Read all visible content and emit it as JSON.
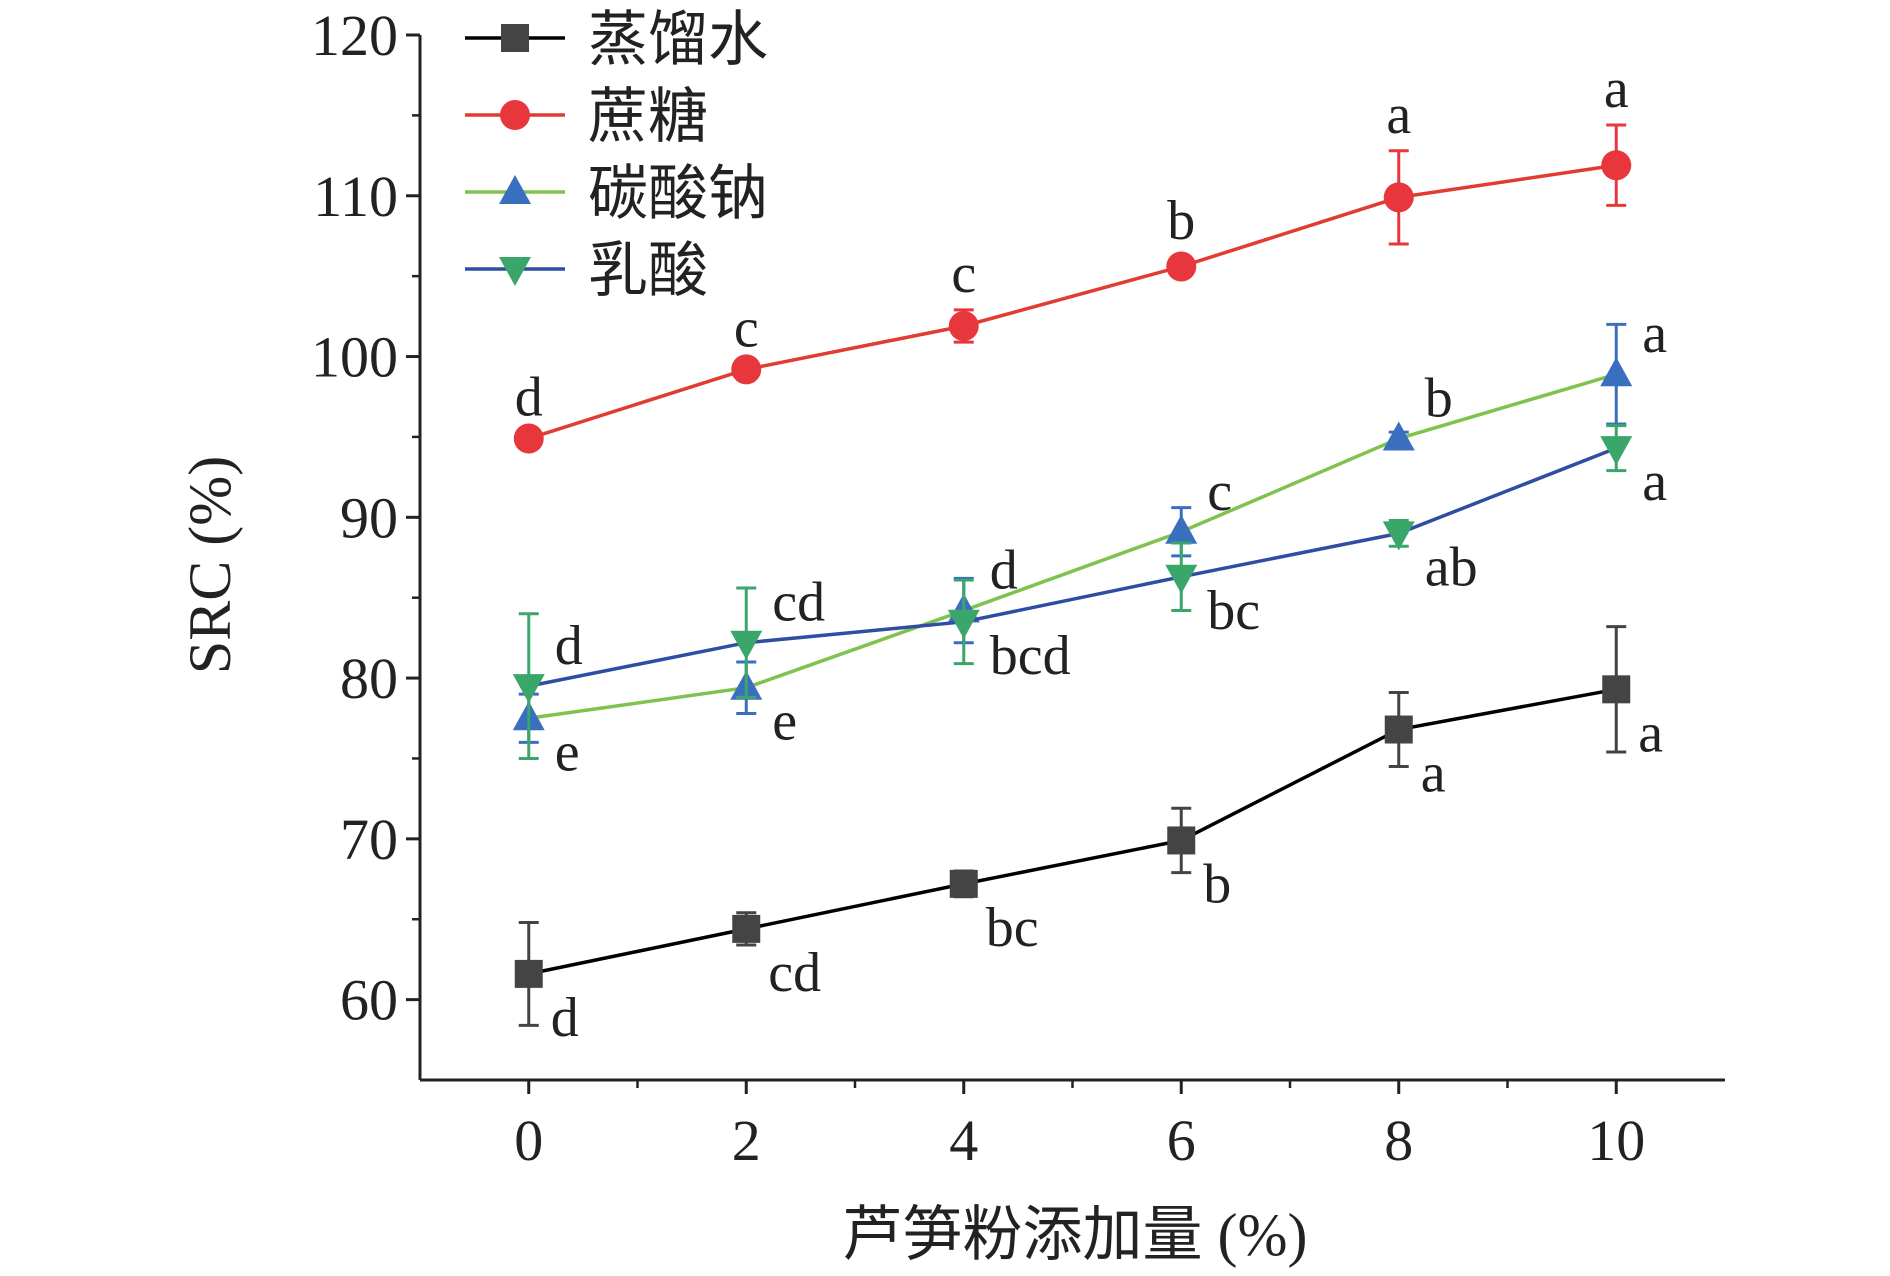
{
  "chart_data": {
    "type": "line",
    "title": "",
    "xlabel": "芦笋粉添加量 (%)",
    "ylabel": "SRC (%)",
    "xlim": [
      -1,
      11
    ],
    "ylim": [
      55,
      120
    ],
    "x_ticks": [
      0,
      2,
      4,
      6,
      8,
      10
    ],
    "y_ticks": [
      60,
      70,
      80,
      90,
      100,
      110,
      120
    ],
    "x_tick_labels": [
      "0",
      "2",
      "4",
      "6",
      "8",
      "10"
    ],
    "y_tick_labels": [
      "60",
      "70",
      "80",
      "90",
      "100",
      "110",
      "120"
    ],
    "grid": false,
    "legend_position": "top-left",
    "x": [
      0,
      2,
      4,
      6,
      8,
      10
    ],
    "series": [
      {
        "name": "蒸馏水",
        "marker": "square",
        "line_color": "#000000",
        "marker_color": "#444444",
        "values": [
          61.6,
          64.4,
          67.2,
          69.9,
          76.8,
          79.3
        ],
        "errors": [
          3.2,
          1.0,
          0.8,
          2.0,
          2.3,
          3.9
        ],
        "labels": [
          "d",
          "cd",
          "bc",
          "b",
          "a",
          "a"
        ],
        "label_positions": [
          "below-right",
          "below-right",
          "below-right",
          "below-right",
          "below-right",
          "below-right"
        ]
      },
      {
        "name": "蔗糖",
        "marker": "circle",
        "line_color": "#e03c31",
        "marker_color": "#e8373c",
        "values": [
          94.9,
          99.2,
          101.9,
          105.6,
          109.9,
          111.9
        ],
        "errors": [
          0.3,
          0.3,
          1.0,
          0.6,
          2.9,
          2.5
        ],
        "labels": [
          "d",
          "c",
          "c",
          "b",
          "a",
          "a"
        ],
        "label_positions": [
          "above",
          "above",
          "above",
          "above",
          "above",
          "above"
        ]
      },
      {
        "name": "碳酸钠",
        "marker": "triangle-up",
        "line_color": "#80c24e",
        "marker_color": "#3a6fc0",
        "values": [
          77.5,
          79.4,
          84.2,
          89.1,
          94.9,
          98.9
        ],
        "errors": [
          1.5,
          1.6,
          2.0,
          1.5,
          0.4,
          3.1
        ],
        "labels": [
          "e",
          "e",
          "d",
          "c",
          "b",
          "a"
        ],
        "label_positions": [
          "right-below",
          "right-below",
          "right-above",
          "right-above",
          "right-above",
          "right-above"
        ]
      },
      {
        "name": "乳酸",
        "marker": "triangle-down",
        "line_color": "#2f4ea3",
        "marker_color": "#3aa66a",
        "values": [
          79.5,
          82.2,
          83.5,
          86.3,
          89.0,
          94.3
        ],
        "errors": [
          4.5,
          3.4,
          2.6,
          2.1,
          0.8,
          1.4
        ],
        "labels": [
          "d",
          "cd",
          "bcd",
          "bc",
          "ab",
          "a"
        ],
        "label_positions": [
          "right-above",
          "right-above",
          "right-below",
          "right-below",
          "right-below",
          "right-below"
        ]
      }
    ]
  }
}
